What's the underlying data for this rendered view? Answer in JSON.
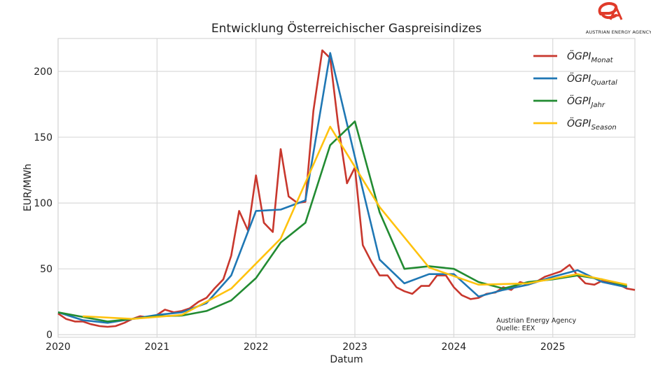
{
  "chart_data": {
    "type": "line",
    "title": "Entwicklung Österreichischer Gaspreisindizes",
    "xlabel": "Datum",
    "ylabel": "EUR/MWh",
    "xlim": [
      2020.0,
      2025.83
    ],
    "ylim": [
      -2,
      225
    ],
    "x_ticks": [
      2020,
      2021,
      2022,
      2023,
      2024,
      2025
    ],
    "x_tick_labels": [
      "2020",
      "2021",
      "2022",
      "2023",
      "2024",
      "2025"
    ],
    "y_ticks": [
      0,
      50,
      100,
      150,
      200
    ],
    "y_tick_labels": [
      "0",
      "50",
      "100",
      "150",
      "200"
    ],
    "grid": true,
    "legend_position": "top-right",
    "series": [
      {
        "base": "ÖGPI",
        "sub": "Monat",
        "color": "#c8372d",
        "points": [
          [
            2020.0,
            16
          ],
          [
            2020.08,
            12
          ],
          [
            2020.17,
            10
          ],
          [
            2020.25,
            10
          ],
          [
            2020.33,
            8
          ],
          [
            2020.42,
            6.5
          ],
          [
            2020.5,
            6
          ],
          [
            2020.58,
            6.5
          ],
          [
            2020.67,
            9
          ],
          [
            2020.75,
            12
          ],
          [
            2020.83,
            14
          ],
          [
            2020.92,
            13
          ],
          [
            2021.0,
            15
          ],
          [
            2021.08,
            19
          ],
          [
            2021.17,
            17
          ],
          [
            2021.25,
            18
          ],
          [
            2021.33,
            20
          ],
          [
            2021.42,
            25
          ],
          [
            2021.5,
            28
          ],
          [
            2021.58,
            35
          ],
          [
            2021.67,
            42
          ],
          [
            2021.75,
            60
          ],
          [
            2021.83,
            94
          ],
          [
            2021.92,
            79
          ],
          [
            2022.0,
            121
          ],
          [
            2022.08,
            85
          ],
          [
            2022.17,
            78
          ],
          [
            2022.25,
            141
          ],
          [
            2022.33,
            105
          ],
          [
            2022.42,
            100
          ],
          [
            2022.5,
            101
          ],
          [
            2022.58,
            170
          ],
          [
            2022.67,
            216
          ],
          [
            2022.75,
            210
          ],
          [
            2022.83,
            160
          ],
          [
            2022.92,
            115
          ],
          [
            2023.0,
            127
          ],
          [
            2023.08,
            68
          ],
          [
            2023.17,
            55
          ],
          [
            2023.25,
            45
          ],
          [
            2023.33,
            45
          ],
          [
            2023.42,
            36
          ],
          [
            2023.5,
            33
          ],
          [
            2023.58,
            31
          ],
          [
            2023.67,
            37
          ],
          [
            2023.75,
            37
          ],
          [
            2023.83,
            45
          ],
          [
            2023.92,
            45
          ],
          [
            2024.0,
            36
          ],
          [
            2024.08,
            30
          ],
          [
            2024.17,
            27
          ],
          [
            2024.25,
            28
          ],
          [
            2024.33,
            31
          ],
          [
            2024.42,
            32
          ],
          [
            2024.5,
            36
          ],
          [
            2024.58,
            34
          ],
          [
            2024.67,
            40
          ],
          [
            2024.75,
            38
          ],
          [
            2024.83,
            40
          ],
          [
            2024.92,
            44
          ],
          [
            2025.0,
            46
          ],
          [
            2025.08,
            48
          ],
          [
            2025.17,
            53
          ],
          [
            2025.25,
            45
          ],
          [
            2025.33,
            39
          ],
          [
            2025.42,
            38
          ],
          [
            2025.5,
            41
          ],
          [
            2025.58,
            40
          ],
          [
            2025.67,
            38
          ],
          [
            2025.75,
            35
          ],
          [
            2025.83,
            34
          ]
        ]
      },
      {
        "base": "ÖGPI",
        "sub": "Quartal",
        "color": "#1f77b4",
        "points": [
          [
            2020.0,
            17
          ],
          [
            2020.25,
            11
          ],
          [
            2020.5,
            9
          ],
          [
            2020.75,
            12
          ],
          [
            2021.0,
            15
          ],
          [
            2021.25,
            17
          ],
          [
            2021.5,
            24
          ],
          [
            2021.75,
            45
          ],
          [
            2022.0,
            94
          ],
          [
            2022.25,
            95
          ],
          [
            2022.5,
            102
          ],
          [
            2022.75,
            214
          ],
          [
            2023.0,
            135
          ],
          [
            2023.25,
            57
          ],
          [
            2023.5,
            39
          ],
          [
            2023.75,
            46
          ],
          [
            2024.0,
            46
          ],
          [
            2024.25,
            29
          ],
          [
            2024.5,
            34
          ],
          [
            2024.75,
            38
          ],
          [
            2025.0,
            44
          ],
          [
            2025.25,
            49
          ],
          [
            2025.5,
            40
          ],
          [
            2025.75,
            36
          ]
        ]
      },
      {
        "base": "ÖGPI",
        "sub": "Jahr",
        "color": "#228b32",
        "points": [
          [
            2020.0,
            17
          ],
          [
            2020.5,
            10
          ],
          [
            2021.0,
            14
          ],
          [
            2021.25,
            14.5
          ],
          [
            2021.5,
            18
          ],
          [
            2021.75,
            26
          ],
          [
            2022.0,
            43
          ],
          [
            2022.25,
            70
          ],
          [
            2022.5,
            85
          ],
          [
            2022.75,
            144
          ],
          [
            2023.0,
            162
          ],
          [
            2023.25,
            93
          ],
          [
            2023.5,
            50
          ],
          [
            2023.75,
            52
          ],
          [
            2024.0,
            50
          ],
          [
            2024.25,
            40
          ],
          [
            2024.5,
            35
          ],
          [
            2024.75,
            40
          ],
          [
            2025.0,
            42
          ],
          [
            2025.25,
            45
          ],
          [
            2025.5,
            42
          ],
          [
            2025.75,
            37
          ]
        ]
      },
      {
        "base": "ÖGPI",
        "sub": "Season",
        "color": "#ffc20e",
        "points": [
          [
            2020.25,
            14
          ],
          [
            2020.75,
            12
          ],
          [
            2021.25,
            15
          ],
          [
            2021.75,
            35
          ],
          [
            2022.25,
            73
          ],
          [
            2022.75,
            158
          ],
          [
            2023.25,
            97
          ],
          [
            2023.75,
            51
          ],
          [
            2024.25,
            38
          ],
          [
            2024.75,
            39
          ],
          [
            2025.25,
            46
          ],
          [
            2025.75,
            38
          ]
        ]
      }
    ]
  },
  "annotation": {
    "line1": "Austrian Energy Agency",
    "line2": "Quelle: EEX"
  },
  "brand": {
    "name": "AUSTRIAN ENERGY AGENCY",
    "color": "#e03b2a"
  }
}
